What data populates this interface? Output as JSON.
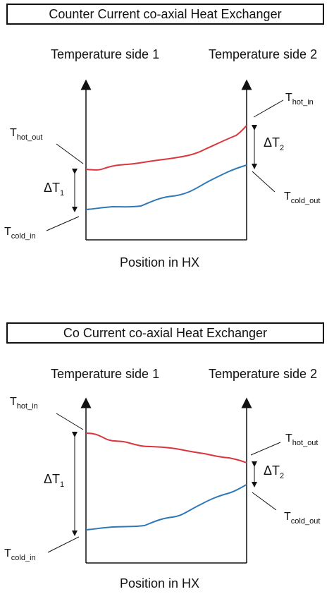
{
  "panels": [
    {
      "title": "Counter Current co-axial Heat Exchanger",
      "axis_left": "Temperature side 1",
      "axis_right": "Temperature side 2",
      "xlabel": "Position in HX",
      "labels": {
        "left_top": {
          "main": "T",
          "sub": "hot_out"
        },
        "left_bottom": {
          "main": "T",
          "sub": "cold_in"
        },
        "right_top": {
          "main": "T",
          "sub": "hot_in"
        },
        "right_bottom": {
          "main": "T",
          "sub": "cold_out"
        },
        "delta_left": {
          "main": "ΔT",
          "sub": "1"
        },
        "delta_right": {
          "main": "ΔT",
          "sub": "2"
        }
      }
    },
    {
      "title": "Co Current co-axial Heat Exchanger",
      "axis_left": "Temperature side 1",
      "axis_right": "Temperature side 2",
      "xlabel": "Position in HX",
      "labels": {
        "left_top": {
          "main": "T",
          "sub": "hot_in"
        },
        "left_bottom": {
          "main": "T",
          "sub": "cold_in"
        },
        "right_top": {
          "main": "T",
          "sub": "hot_out"
        },
        "right_bottom": {
          "main": "T",
          "sub": "cold_out"
        },
        "delta_left": {
          "main": "ΔT",
          "sub": "1"
        },
        "delta_right": {
          "main": "ΔT",
          "sub": "2"
        }
      }
    }
  ],
  "colors": {
    "hot": "#d9363e",
    "cold": "#2f78b7",
    "axis": "#111111"
  }
}
